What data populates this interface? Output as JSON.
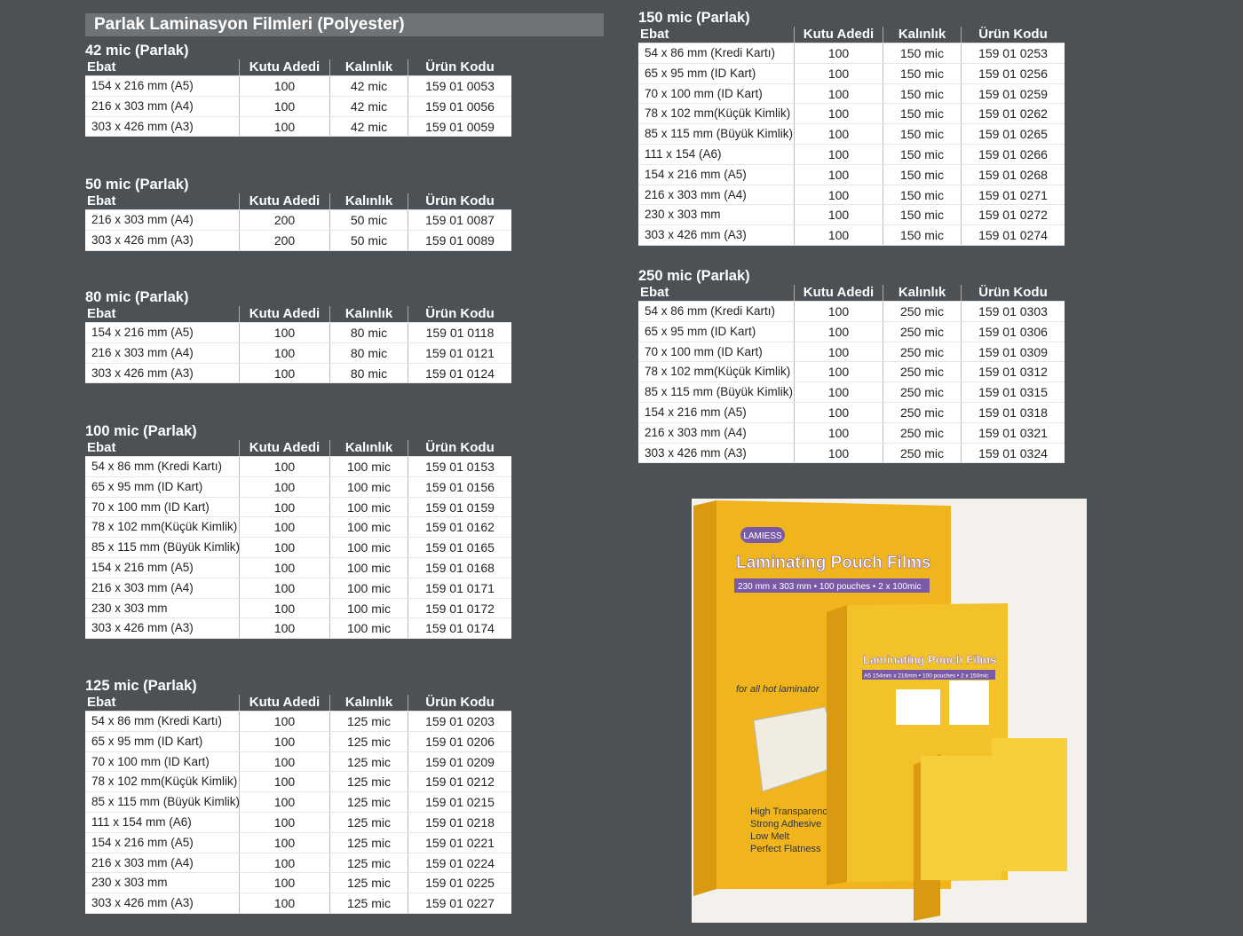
{
  "header": {
    "title": "Parlak Laminasyon Filmleri (Polyester)"
  },
  "tables": [
    {
      "title": "42 mic (Parlak)",
      "headers": [
        "Ebat",
        "Kutu Adedi",
        "Kalınlık",
        "Ürün Kodu"
      ],
      "rows": [
        [
          "154 x 216 mm (A5)",
          "100",
          "42 mic",
          "159 01 0053"
        ],
        [
          "216 x 303 mm (A4)",
          "100",
          "42 mic",
          "159 01 0056"
        ],
        [
          "303 x 426 mm (A3)",
          "100",
          "42 mic",
          "159 01 0059"
        ]
      ]
    },
    {
      "title": "50 mic (Parlak)",
      "headers": [
        "Ebat",
        "Kutu Adedi",
        "Kalınlık",
        "Ürün Kodu"
      ],
      "rows": [
        [
          "216 x 303 mm (A4)",
          "200",
          "50 mic",
          "159 01 0087"
        ],
        [
          "303 x 426 mm (A3)",
          "200",
          "50 mic",
          "159 01 0089"
        ]
      ]
    },
    {
      "title": "80 mic (Parlak)",
      "headers": [
        "Ebat",
        "Kutu Adedi",
        "Kalınlık",
        "Ürün Kodu"
      ],
      "rows": [
        [
          "154 x 216 mm (A5)",
          "100",
          "80 mic",
          "159 01 0118"
        ],
        [
          "216 x 303 mm (A4)",
          "100",
          "80 mic",
          "159 01 0121"
        ],
        [
          "303 x 426 mm (A3)",
          "100",
          "80 mic",
          "159 01 0124"
        ]
      ]
    },
    {
      "title": "100 mic (Parlak)",
      "headers": [
        "Ebat",
        "Kutu Adedi",
        "Kalınlık",
        "Ürün Kodu"
      ],
      "rows": [
        [
          "54 x 86 mm (Kredi Kartı)",
          "100",
          "100 mic",
          "159 01 0153"
        ],
        [
          "65 x 95 mm (ID Kart)",
          "100",
          "100 mic",
          "159 01 0156"
        ],
        [
          "70 x 100 mm (ID Kart)",
          "100",
          "100 mic",
          "159 01 0159"
        ],
        [
          "78 x 102 mm(Küçük Kimlik)",
          "100",
          "100 mic",
          "159 01 0162"
        ],
        [
          "85 x 115 mm (Büyük Kimlik)",
          "100",
          "100 mic",
          "159 01 0165"
        ],
        [
          "154 x 216 mm (A5)",
          "100",
          "100 mic",
          "159 01 0168"
        ],
        [
          "216 x 303 mm (A4)",
          "100",
          "100 mic",
          "159 01 0171"
        ],
        [
          "230 x 303 mm",
          "100",
          "100 mic",
          "159 01 0172"
        ],
        [
          "303 x 426 mm (A3)",
          "100",
          "100 mic",
          "159 01 0174"
        ]
      ]
    },
    {
      "title": "125 mic (Parlak)",
      "headers": [
        "Ebat",
        "Kutu Adedi",
        "Kalınlık",
        "Ürün Kodu"
      ],
      "rows": [
        [
          "54 x 86 mm (Kredi Kartı)",
          "100",
          "125 mic",
          "159 01 0203"
        ],
        [
          "65 x 95 mm (ID Kart)",
          "100",
          "125 mic",
          "159 01 0206"
        ],
        [
          "70 x 100 mm (ID Kart)",
          "100",
          "125 mic",
          "159 01 0209"
        ],
        [
          "78 x 102 mm(Küçük Kimlik)",
          "100",
          "125 mic",
          "159 01 0212"
        ],
        [
          "85 x 115 mm (Büyük Kimlik)",
          "100",
          "125 mic",
          "159 01 0215"
        ],
        [
          "111 x 154 mm (A6)",
          "100",
          "125 mic",
          "159 01 0218"
        ],
        [
          "154 x 216 mm (A5)",
          "100",
          "125 mic",
          "159 01 0221"
        ],
        [
          "216 x 303 mm (A4)",
          "100",
          "125 mic",
          "159 01 0224"
        ],
        [
          "230 x 303 mm",
          "100",
          "125 mic",
          "159 01 0225"
        ],
        [
          "303 x 426 mm (A3)",
          "100",
          "125 mic",
          "159 01 0227"
        ]
      ]
    },
    {
      "title": "150 mic (Parlak)",
      "headers": [
        "Ebat",
        "Kutu Adedi",
        "Kalınlık",
        "Ürün Kodu"
      ],
      "rows": [
        [
          "54 x 86 mm (Kredi Kartı)",
          "100",
          "150 mic",
          "159 01 0253"
        ],
        [
          "65 x 95 mm (ID Kart)",
          "100",
          "150 mic",
          "159 01 0256"
        ],
        [
          "70 x 100 mm (ID Kart)",
          "100",
          "150 mic",
          "159 01 0259"
        ],
        [
          "78 x 102 mm(Küçük Kimlik)",
          "100",
          "150 mic",
          "159 01 0262"
        ],
        [
          "85 x 115 mm (Büyük Kimlik)",
          "100",
          "150 mic",
          "159 01 0265"
        ],
        [
          "111 x 154 (A6)",
          "100",
          "150 mic",
          "159 01 0266"
        ],
        [
          "154 x 216 mm (A5)",
          "100",
          "150 mic",
          "159 01 0268"
        ],
        [
          "216 x 303 mm (A4)",
          "100",
          "150 mic",
          "159 01 0271"
        ],
        [
          "230 x 303 mm",
          "100",
          "150 mic",
          "159 01 0272"
        ],
        [
          "303 x 426 mm (A3)",
          "100",
          "150 mic",
          "159 01 0274"
        ]
      ]
    },
    {
      "title": "250 mic (Parlak)",
      "headers": [
        "Ebat",
        "Kutu Adedi",
        "Kalınlık",
        "Ürün Kodu"
      ],
      "rows": [
        [
          "54 x 86 mm (Kredi Kartı)",
          "100",
          "250 mic",
          "159 01 0303"
        ],
        [
          "65 x 95 mm (ID Kart)",
          "100",
          "250 mic",
          "159 01 0306"
        ],
        [
          "70 x 100 mm (ID Kart)",
          "100",
          "250 mic",
          "159 01 0309"
        ],
        [
          "78 x 102 mm(Küçük Kimlik)",
          "100",
          "250 mic",
          "159 01 0312"
        ],
        [
          "85 x 115 mm (Büyük Kimlik)",
          "100",
          "250 mic",
          "159 01 0315"
        ],
        [
          "154 x 216 mm (A5)",
          "100",
          "250 mic",
          "159 01 0318"
        ],
        [
          "216 x 303 mm (A4)",
          "100",
          "250 mic",
          "159 01 0321"
        ],
        [
          "303 x 426 mm (A3)",
          "100",
          "250 mic",
          "159 01 0324"
        ]
      ]
    }
  ],
  "image": {
    "brand": "LAMIESS",
    "product": "Laminating Pouch Films",
    "large_spec": "230 mm x 303 mm • 100 pouches • 2 x 100mic",
    "medium_spec": "A5 154mm x 216mm • 100 pouches • 2 x 150mic",
    "tagline": "for all hot laminator",
    "features": [
      "High Transparency",
      "Strong Adhesive",
      "Low Melt",
      "Perfect Flatness"
    ]
  }
}
